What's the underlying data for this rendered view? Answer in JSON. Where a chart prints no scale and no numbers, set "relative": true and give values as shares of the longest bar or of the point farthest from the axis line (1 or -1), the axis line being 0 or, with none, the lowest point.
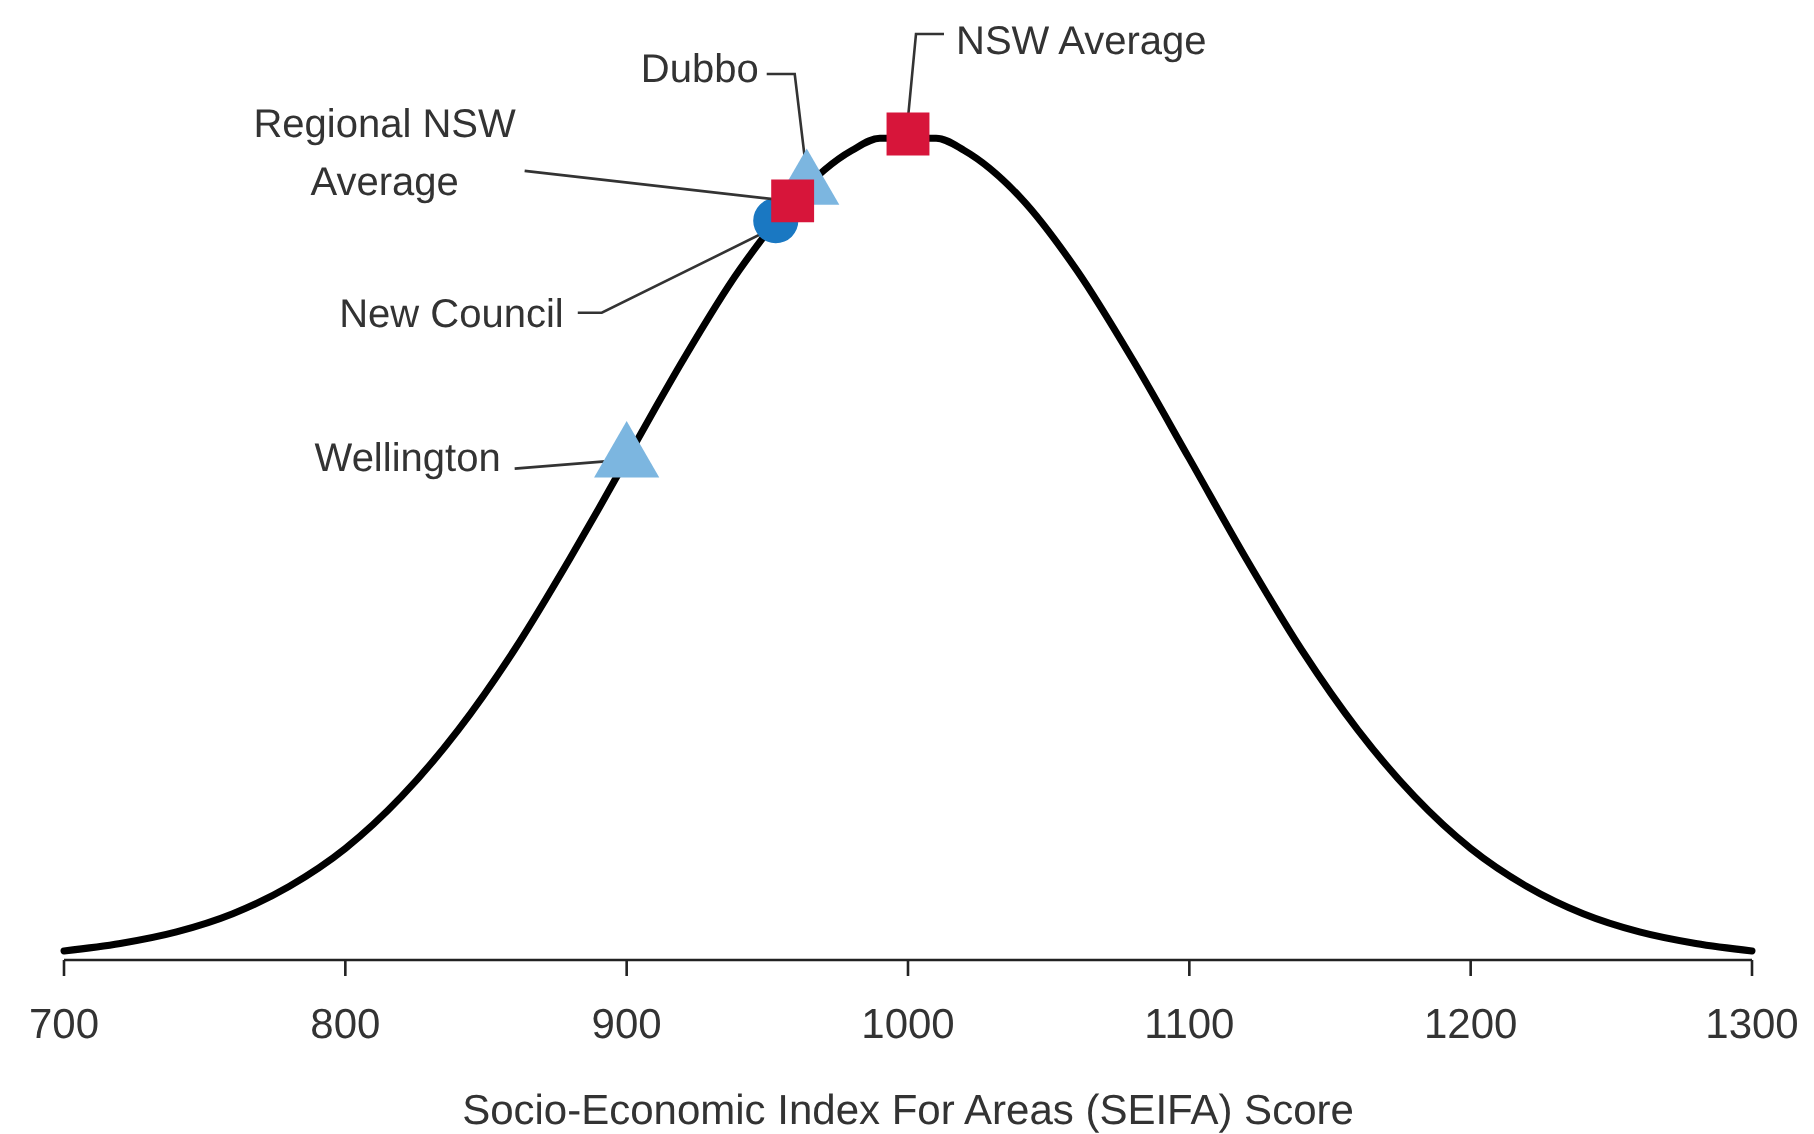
{
  "chart_data": {
    "type": "line",
    "relative": true,
    "xlabel": "Socio-Economic Index For Areas (SEIFA) Score",
    "xlim": [
      700,
      1300
    ],
    "xticks": [
      700,
      800,
      900,
      1000,
      1100,
      1200,
      1300
    ],
    "series": [
      {
        "color": "#000000",
        "x": [
          700,
          720,
          740,
          760,
          780,
          800,
          820,
          840,
          860,
          880,
          890,
          910,
          920,
          940,
          980,
          990,
          1010,
          1020,
          1040,
          1060,
          1080,
          1100,
          1120,
          1140,
          1160,
          1180,
          1200,
          1220,
          1240,
          1260,
          1280,
          1300
        ],
        "values": [
          0.011,
          0.02,
          0.034,
          0.056,
          0.089,
          0.135,
          0.198,
          0.278,
          0.375,
          0.487,
          0.546,
          0.667,
          0.726,
          0.835,
          0.98,
          0.995,
          0.995,
          0.98,
          0.923,
          0.835,
          0.726,
          0.607,
          0.487,
          0.375,
          0.278,
          0.198,
          0.135,
          0.089,
          0.056,
          0.034,
          0.02,
          0.011
        ]
      },
      {
        "type": "scatter",
        "name": "New Council",
        "color": "#1a78c2",
        "marker": "circle",
        "x": [
          953
        ],
        "values": [
          0.895
        ]
      },
      {
        "type": "scatter",
        "name": "Dubbo",
        "color": "#7cb6e0",
        "marker": "triangle",
        "x": [
          964
        ],
        "values": [
          0.937
        ]
      },
      {
        "type": "scatter",
        "name": "Regional NSW Average",
        "color": "#d7153a",
        "marker": "square",
        "x": [
          959
        ],
        "values": [
          0.919
        ]
      },
      {
        "type": "scatter",
        "name": "NSW Average",
        "color": "#d7153a",
        "marker": "square",
        "x": [
          1000
        ],
        "values": [
          1
        ]
      },
      {
        "type": "scatter",
        "name": "Wellington",
        "color": "#7cb6e0",
        "marker": "triangle",
        "x": [
          900
        ],
        "values": [
          0.607
        ]
      }
    ]
  }
}
